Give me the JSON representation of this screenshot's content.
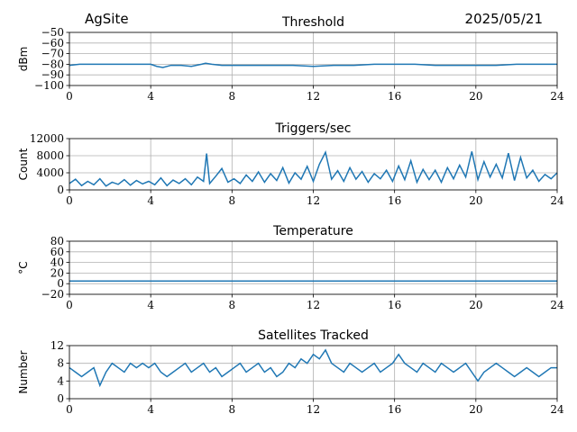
{
  "header": {
    "site": "AgSite",
    "date": "2025/05/21"
  },
  "chart_data": [
    {
      "type": "line",
      "title": "Threshold",
      "ylabel": "dBm",
      "xlabel": "",
      "xlim": [
        0,
        24
      ],
      "ylim": [
        -100,
        -50
      ],
      "xticks": [
        "0",
        "4",
        "8",
        "12",
        "16",
        "20",
        "24"
      ],
      "yticks": [
        "−50",
        "−60",
        "−70",
        "−80",
        "−90",
        "−100"
      ],
      "grid": true,
      "color": "#1f77b4",
      "x": [
        0,
        0.5,
        1,
        1.5,
        2,
        2.5,
        3,
        3.5,
        4,
        4.3,
        4.6,
        5,
        5.5,
        6,
        6.5,
        6.7,
        7,
        7.5,
        8,
        9,
        10,
        11,
        12,
        13,
        14,
        15,
        16,
        17,
        18,
        19,
        20,
        21,
        22,
        23,
        24
      ],
      "y": [
        -81,
        -80,
        -80,
        -80,
        -80,
        -80,
        -80,
        -80,
        -80,
        -82,
        -83,
        -81,
        -81,
        -82,
        -80,
        -79,
        -80,
        -81,
        -81,
        -81,
        -81,
        -81,
        -82,
        -81,
        -81,
        -80,
        -80,
        -80,
        -81,
        -81,
        -81,
        -81,
        -80,
        -80,
        -80
      ]
    },
    {
      "type": "line",
      "title": "Triggers/sec",
      "ylabel": "Count",
      "xlabel": "",
      "xlim": [
        0,
        24
      ],
      "ylim": [
        0,
        12000
      ],
      "xticks": [
        "0",
        "4",
        "8",
        "12",
        "16",
        "20",
        "24"
      ],
      "yticks": [
        "12000",
        "8000",
        "4000",
        "0"
      ],
      "grid": true,
      "color": "#1f77b4",
      "x": [
        0,
        0.3,
        0.6,
        0.9,
        1.2,
        1.5,
        1.8,
        2.1,
        2.4,
        2.7,
        3,
        3.3,
        3.6,
        3.9,
        4.2,
        4.5,
        4.8,
        5.1,
        5.4,
        5.7,
        6,
        6.3,
        6.6,
        6.75,
        6.9,
        7.2,
        7.5,
        7.8,
        8.1,
        8.4,
        8.7,
        9,
        9.3,
        9.6,
        9.9,
        10.2,
        10.5,
        10.8,
        11.1,
        11.4,
        11.7,
        12,
        12.3,
        12.6,
        12.9,
        13.2,
        13.5,
        13.8,
        14.1,
        14.4,
        14.7,
        15,
        15.3,
        15.6,
        15.9,
        16.2,
        16.5,
        16.8,
        17.1,
        17.4,
        17.7,
        18,
        18.3,
        18.6,
        18.9,
        19.2,
        19.5,
        19.8,
        20.1,
        20.4,
        20.7,
        21,
        21.3,
        21.6,
        21.9,
        22.2,
        22.5,
        22.8,
        23.1,
        23.4,
        23.7,
        24
      ],
      "y": [
        1500,
        2500,
        1000,
        2000,
        1200,
        2600,
        900,
        1800,
        1300,
        2400,
        1100,
        2200,
        1400,
        2000,
        1200,
        2800,
        1000,
        2300,
        1500,
        2600,
        1200,
        3000,
        2000,
        8500,
        1500,
        3200,
        5000,
        1800,
        2600,
        1500,
        3500,
        2000,
        4200,
        1800,
        3800,
        2200,
        5200,
        1600,
        4000,
        2500,
        5500,
        2000,
        6000,
        8800,
        2500,
        4500,
        2000,
        5200,
        2500,
        4300,
        1800,
        3800,
        2600,
        4600,
        2000,
        5600,
        2400,
        6800,
        1800,
        4800,
        2400,
        4600,
        1800,
        5200,
        2600,
        5800,
        3000,
        9000,
        2400,
        6600,
        3000,
        6000,
        2800,
        8600,
        2200,
        7600,
        2800,
        4600,
        2000,
        3600,
        2600,
        4000
      ]
    },
    {
      "type": "line",
      "title": "Temperature",
      "ylabel": "°C",
      "xlabel": "",
      "xlim": [
        0,
        24
      ],
      "ylim": [
        -20,
        80
      ],
      "xticks": [
        "0",
        "4",
        "8",
        "12",
        "16",
        "20",
        "24"
      ],
      "yticks": [
        "80",
        "60",
        "40",
        "20",
        "0",
        "−20"
      ],
      "grid": true,
      "color": "#1f77b4",
      "x": [
        0,
        24
      ],
      "y": [
        5,
        5
      ]
    },
    {
      "type": "line",
      "title": "Satellites Tracked",
      "ylabel": "Number",
      "xlabel": "",
      "xlim": [
        0,
        24
      ],
      "ylim": [
        0,
        12
      ],
      "xticks": [
        "0",
        "4",
        "8",
        "12",
        "16",
        "20",
        "24"
      ],
      "yticks": [
        "12",
        "8",
        "4",
        "0"
      ],
      "grid": true,
      "color": "#1f77b4",
      "x": [
        0,
        0.3,
        0.6,
        0.9,
        1.2,
        1.5,
        1.8,
        2.1,
        2.4,
        2.7,
        3,
        3.3,
        3.6,
        3.9,
        4.2,
        4.5,
        4.8,
        5.1,
        5.4,
        5.7,
        6,
        6.3,
        6.6,
        6.9,
        7.2,
        7.5,
        7.8,
        8.1,
        8.4,
        8.7,
        9,
        9.3,
        9.6,
        9.9,
        10.2,
        10.5,
        10.8,
        11.1,
        11.4,
        11.7,
        12,
        12.3,
        12.6,
        12.9,
        13.2,
        13.5,
        13.8,
        14.1,
        14.4,
        14.7,
        15,
        15.3,
        15.6,
        15.9,
        16.2,
        16.5,
        16.8,
        17.1,
        17.4,
        17.7,
        18,
        18.3,
        18.6,
        18.9,
        19.2,
        19.5,
        19.8,
        20.1,
        20.4,
        20.7,
        21,
        21.3,
        21.6,
        21.9,
        22.2,
        22.5,
        22.8,
        23.1,
        23.4,
        23.7,
        24
      ],
      "y": [
        7,
        6,
        5,
        6,
        7,
        3,
        6,
        8,
        7,
        6,
        8,
        7,
        8,
        7,
        8,
        6,
        5,
        6,
        7,
        8,
        6,
        7,
        8,
        6,
        7,
        5,
        6,
        7,
        8,
        6,
        7,
        8,
        6,
        7,
        5,
        6,
        8,
        7,
        9,
        8,
        10,
        9,
        11,
        8,
        7,
        6,
        8,
        7,
        6,
        7,
        8,
        6,
        7,
        8,
        10,
        8,
        7,
        6,
        8,
        7,
        6,
        8,
        7,
        6,
        7,
        8,
        6,
        4,
        6,
        7,
        8,
        7,
        6,
        5,
        6,
        7,
        6,
        5,
        6,
        7,
        7
      ]
    }
  ]
}
